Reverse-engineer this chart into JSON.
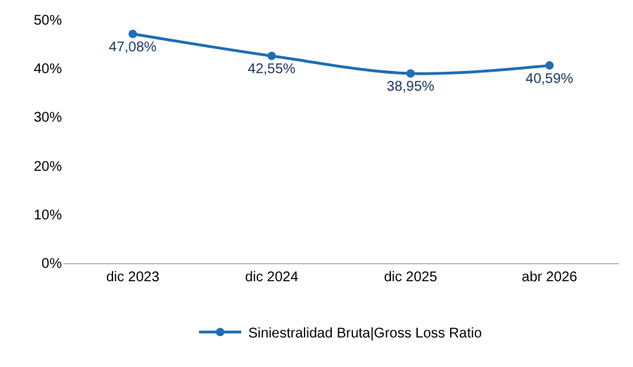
{
  "chart_data": {
    "type": "line",
    "categories": [
      "dic 2023",
      "dic 2024",
      "dic 2025",
      "abr 2026"
    ],
    "series": [
      {
        "name": "Siniestralidad Bruta|Gross Loss Ratio",
        "color": "#1f6db5",
        "values": [
          47.08,
          42.55,
          38.95,
          40.59
        ],
        "value_labels": [
          "47,08%",
          "42,55%",
          "38,95%",
          "40,59%"
        ]
      }
    ],
    "ylim": [
      0,
      50
    ],
    "yticks": [
      {
        "value": 0,
        "label": "0%"
      },
      {
        "value": 10,
        "label": "10%"
      },
      {
        "value": 20,
        "label": "20%"
      },
      {
        "value": 30,
        "label": "30%"
      },
      {
        "value": 40,
        "label": "40%"
      },
      {
        "value": 50,
        "label": "50%"
      }
    ],
    "grid": false,
    "legend": "bottom",
    "marker": "circle",
    "line_style": "solid"
  }
}
